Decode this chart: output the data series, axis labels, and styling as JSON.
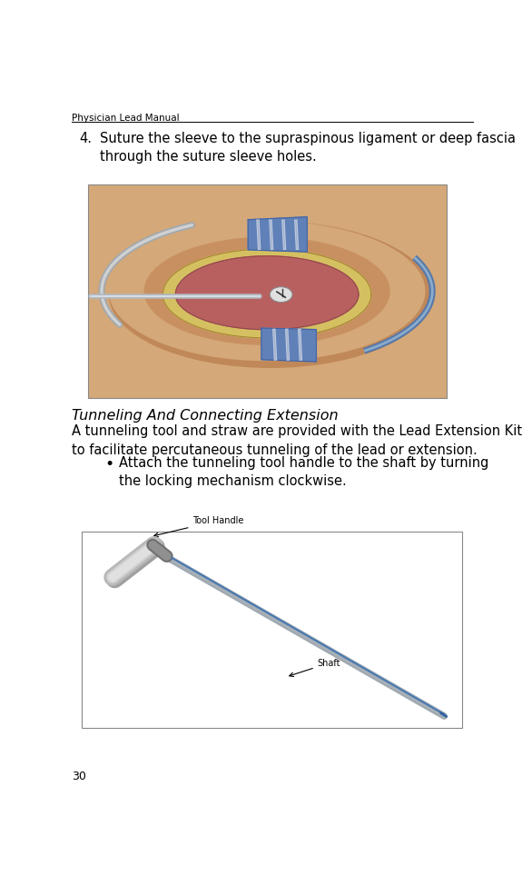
{
  "header_text": "Physician Lead Manual",
  "page_number": "30",
  "step4_number": "4.",
  "step4_text": "Suture the sleeve to the supraspinous ligament or deep fascia\nthrough the suture sleeve holes.",
  "section_title": "Tunneling And Connecting Extension",
  "body_text": "A tunneling tool and straw are provided with the Lead Extension Kit\nto facilitate percutaneous tunneling of the lead or extension.",
  "bullet_text": "Attach the tunneling tool handle to the shaft by turning\nthe locking mechanism clockwise.",
  "bg_color": "#ffffff",
  "header_line_color": "#000000",
  "label_tool_handle": "Tool Handle",
  "label_shaft": "Shaft",
  "font_size_header": 7.5,
  "font_size_step": 10.5,
  "font_size_section": 11.5,
  "font_size_body": 10.5,
  "font_size_bullet": 10.5,
  "font_size_page": 9,
  "font_size_label": 7,
  "skin_color": "#d4a878",
  "skin_shadow": "#c49060",
  "wound_fat": "#e8d090",
  "wound_tissue": "#b86060",
  "sleeve_blue": "#6080b8",
  "sleeve_blue2": "#7090c8",
  "wire_gray": "#a0a8b0",
  "wire_blue": "#5878a8"
}
